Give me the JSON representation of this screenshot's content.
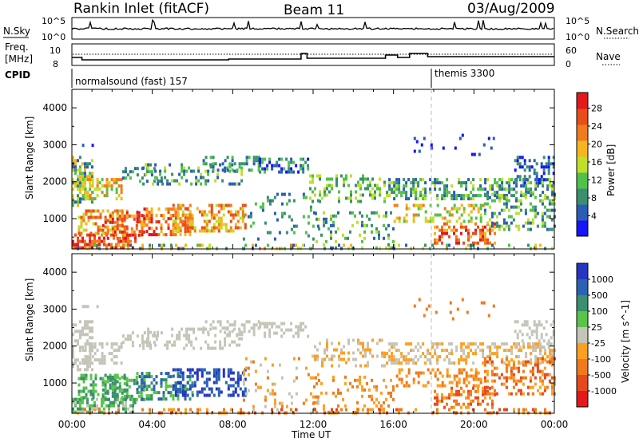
{
  "header": {
    "station": "Rankin Inlet (fitACF)",
    "beam": "Beam 11",
    "date": "03/Aug/2009"
  },
  "strip": {
    "nsky_label": "N.Sky",
    "nsky_ticks": [
      "10^5",
      "10^0"
    ],
    "nsearch_label": "N.Search",
    "nsearch_ticks": [
      "10^5",
      "10^0"
    ],
    "freq_label": "Freq.",
    "freq_unit": "[MHz]",
    "freq_ticks": [
      "10",
      "8"
    ],
    "nave_label": "Nave",
    "nave_ticks": [
      "60",
      "0"
    ],
    "cpid_label": "CPID",
    "cpid_1": "normalsound (fast) 157",
    "cpid_2": "themis 3300"
  },
  "colors": {
    "power": [
      "#1414ff",
      "#2a5db6",
      "#3b8f6e",
      "#4fc24a",
      "#bfe028",
      "#f6b51f",
      "#f07c1c",
      "#ea4d1a",
      "#e3191c"
    ],
    "velocity": [
      "#2436c2",
      "#2a62b4",
      "#3a8f6e",
      "#58c449",
      "#c4c4b8",
      "#ff9f1f",
      "#f07a1c",
      "#e54a1c",
      "#e3191c"
    ]
  },
  "chart_data": [
    {
      "type": "heatmap",
      "title": "Power",
      "ylabel": "Slant Range [km]",
      "xlabel": "",
      "x_ticks": [
        "00:00",
        "04:00",
        "08:00",
        "12:00",
        "16:00",
        "20:00",
        "00:00"
      ],
      "y_ticks": [
        "1000",
        "2000",
        "3000",
        "4000"
      ],
      "ylim": [
        180,
        4500
      ],
      "colorbar_label": "Power [dB]",
      "colorbar_ticks": [
        "4",
        "8",
        "12",
        "16",
        "20",
        "24",
        "28"
      ],
      "colorbar_range": [
        0,
        30
      ]
    },
    {
      "type": "heatmap",
      "title": "Velocity",
      "ylabel": "Slant Range [km]",
      "xlabel": "Time UT",
      "x_ticks": [
        "00:00",
        "04:00",
        "08:00",
        "12:00",
        "16:00",
        "20:00",
        "00:00"
      ],
      "y_ticks": [
        "1000",
        "2000",
        "3000",
        "4000"
      ],
      "ylim": [
        180,
        4500
      ],
      "colorbar_label": "Velocity [m s^-1]",
      "colorbar_ticks": [
        "1000",
        "500",
        "100",
        "25",
        "-25",
        "-100",
        "-500",
        "-1000"
      ]
    }
  ]
}
